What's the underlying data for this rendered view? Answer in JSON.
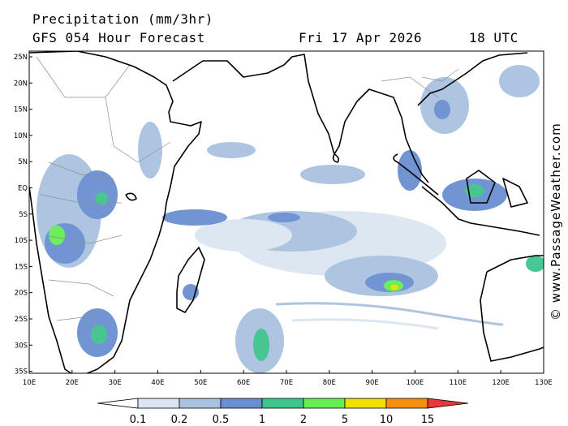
{
  "header": {
    "title": "Precipitation (mm/3hr)",
    "forecast": "GFS 054 Hour Forecast",
    "date": "Fri 17 Apr 2026",
    "time": "18 UTC"
  },
  "credit": "© www.PassageWeather.com",
  "axes": {
    "lat_labels": [
      "25N",
      "20N",
      "15N",
      "10N",
      "5N",
      "EQ",
      "5S",
      "10S",
      "15S",
      "20S",
      "25S",
      "30S",
      "35S"
    ],
    "lon_labels": [
      "10E",
      "20E",
      "30E",
      "40E",
      "50E",
      "60E",
      "70E",
      "80E",
      "90E",
      "100E",
      "110E",
      "120E",
      "130E"
    ]
  },
  "legend": {
    "labels": [
      "0.1",
      "0.2",
      "0.5",
      "1",
      "2",
      "5",
      "10",
      "15"
    ],
    "colors": [
      "#ffffff",
      "#dce6f2",
      "#a9c2e0",
      "#6a8fd0",
      "#3ec48c",
      "#66ee55",
      "#f0e000",
      "#f39010",
      "#e33a3a"
    ]
  },
  "colors": {
    "land_outline": "#000000",
    "border": "#909090",
    "light_rain": "#dce6f2",
    "moderate_rain": "#a9c2e0"
  }
}
